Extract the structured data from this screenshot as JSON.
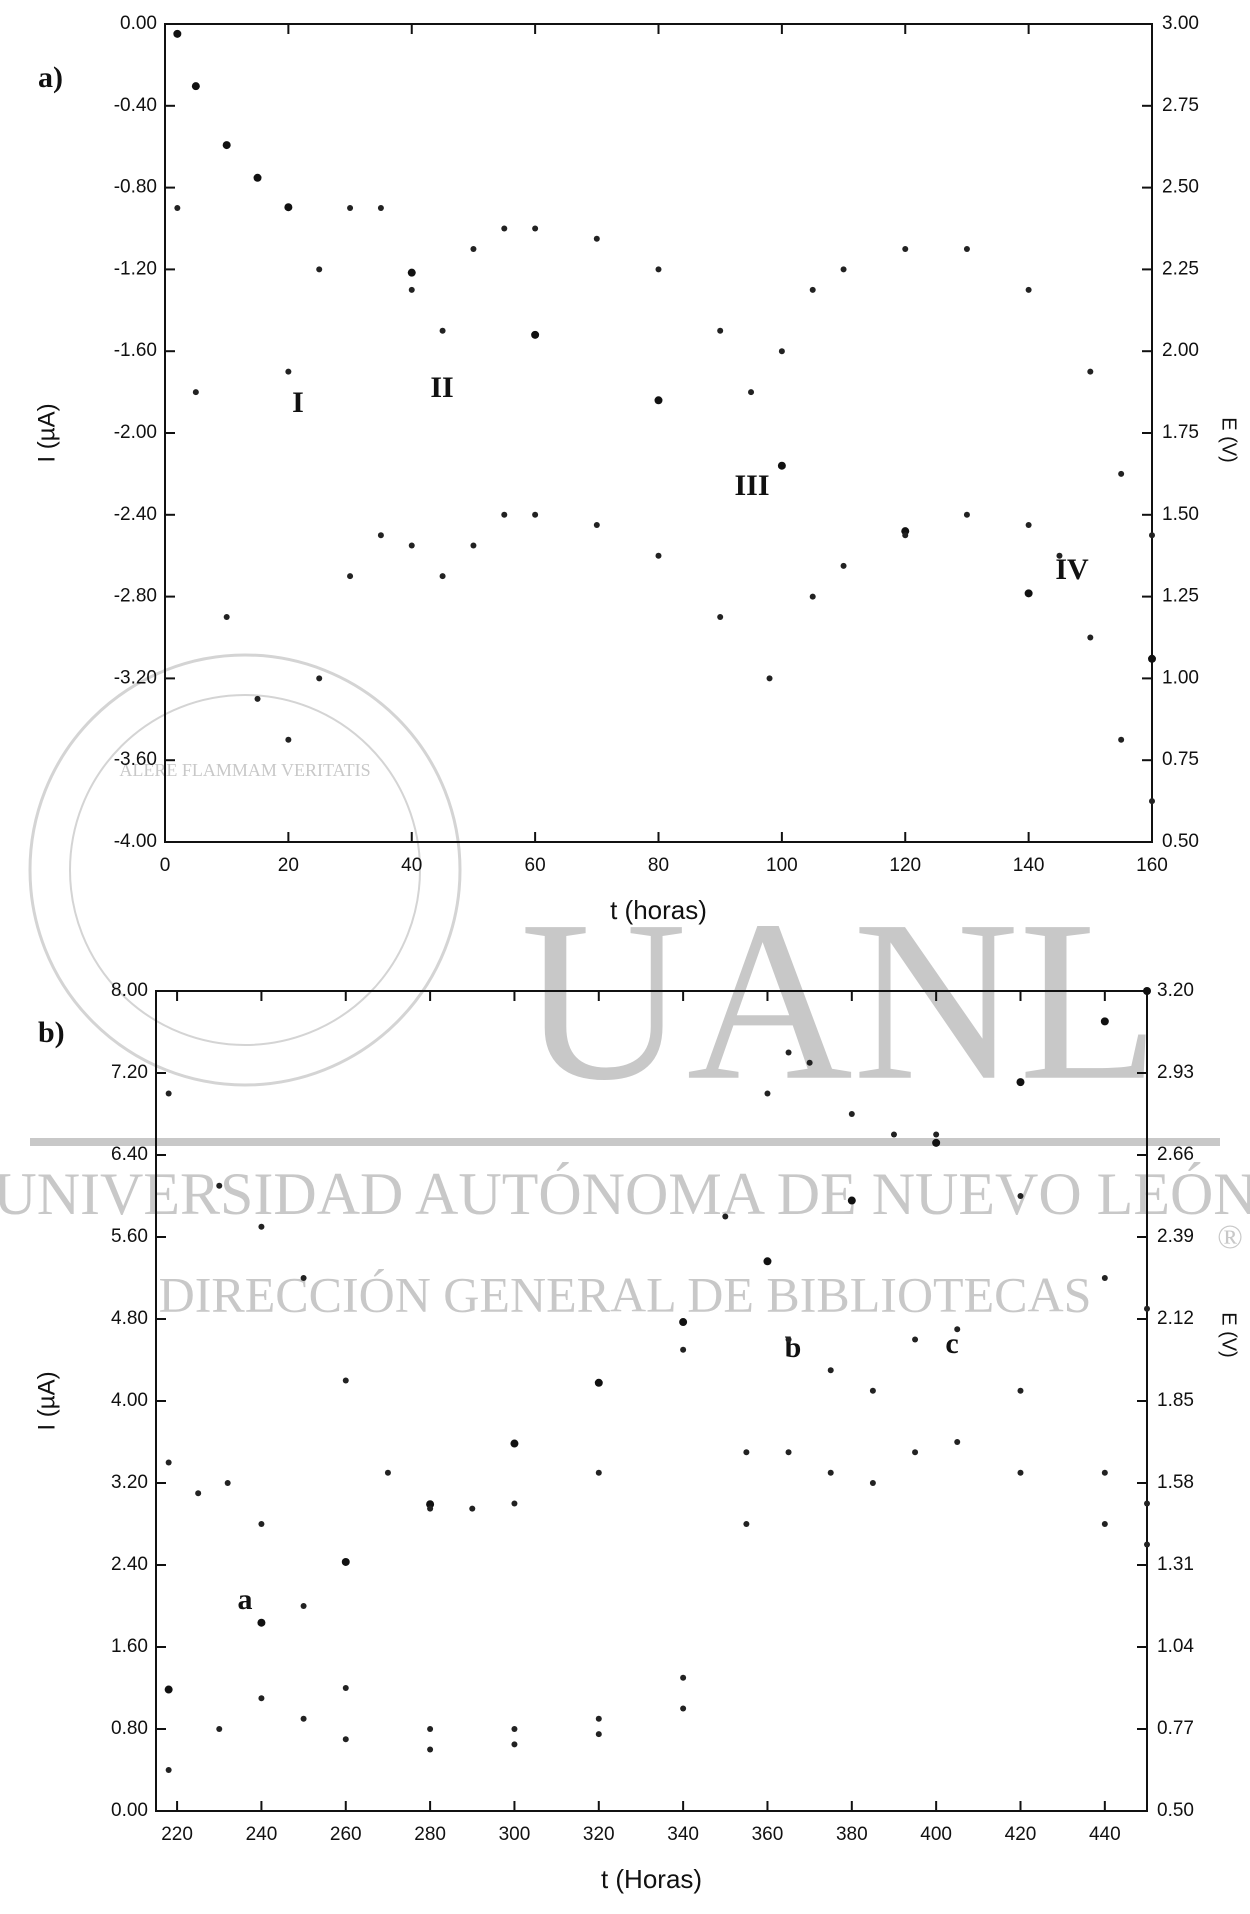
{
  "watermark": {
    "university": "UNIVERSIDAD AUTÓNOMA DE NUEVO LEÓN",
    "library": "DIRECCIÓN GENERAL DE BIBLIOTECAS",
    "logo": "UANL",
    "motto": "ALERE FLAMMAM VERITATIS",
    "mark": "®"
  },
  "chart_data": [
    {
      "type": "scatter",
      "panel_label": "a)",
      "x_label": "t (horas)",
      "y_label": "I (µA)",
      "y2_label": "E (V)",
      "annotations": [
        "I",
        "II",
        "III",
        "IV"
      ],
      "xlim": [
        0,
        160
      ],
      "xticks": [
        0,
        20,
        40,
        60,
        80,
        100,
        120,
        140,
        160
      ],
      "ylim": [
        -4,
        0
      ],
      "yticks": [
        {
          "value": -4,
          "label": "-4.00"
        },
        {
          "value": -3.6,
          "label": "-3.60"
        },
        {
          "value": -3.2,
          "label": "-3.20"
        },
        {
          "value": -2.8,
          "label": "-2.80"
        },
        {
          "value": -2.4,
          "label": "-2.40"
        },
        {
          "value": -2,
          "label": "-2.00"
        },
        {
          "value": -1.6,
          "label": "-1.60"
        },
        {
          "value": -1.2,
          "label": "-1.20"
        },
        {
          "value": -0.8,
          "label": "-0.80"
        },
        {
          "value": -0.4,
          "label": "-0.40"
        },
        {
          "value": 0,
          "label": "0.00"
        }
      ],
      "y2lim": [
        0.5,
        3
      ],
      "y2ticks": [
        {
          "value": 0.5,
          "label": "0.50"
        },
        {
          "value": 0.75,
          "label": "0.75"
        },
        {
          "value": 1,
          "label": "1.00"
        },
        {
          "value": 1.25,
          "label": "1.25"
        },
        {
          "value": 1.5,
          "label": "1.50"
        },
        {
          "value": 1.75,
          "label": "1.75"
        },
        {
          "value": 2,
          "label": "2.00"
        },
        {
          "value": 2.25,
          "label": "2.25"
        },
        {
          "value": 2.5,
          "label": "2.50"
        },
        {
          "value": 2.75,
          "label": "2.75"
        },
        {
          "value": 3,
          "label": "3.00"
        }
      ],
      "series": [
        {
          "color": "#111111",
          "axis": "y2",
          "x": [
            2,
            5,
            10,
            15,
            20,
            40,
            60,
            80,
            100,
            120,
            140,
            160
          ],
          "values": [
            2.97,
            2.81,
            2.63,
            2.53,
            2.44,
            2.24,
            2.05,
            1.85,
            1.65,
            1.45,
            1.26,
            1.06
          ]
        },
        {
          "color": "#222222",
          "x": [
            20,
            25,
            30,
            35,
            40,
            45,
            50,
            55,
            60,
            70,
            80,
            90,
            95,
            100,
            105,
            110,
            120,
            130,
            140,
            150,
            155,
            160
          ],
          "values": [
            -1.7,
            -1.2,
            -0.9,
            -0.9,
            -1.3,
            -1.5,
            -1.1,
            -1.0,
            -1.0,
            -1.05,
            -1.2,
            -1.5,
            -1.8,
            -1.6,
            -1.3,
            -1.2,
            -1.1,
            -1.1,
            -1.3,
            -1.7,
            -2.2,
            -2.5
          ]
        },
        {
          "color": "#222222",
          "x": [
            2,
            5,
            10,
            15,
            20,
            25,
            30,
            35,
            40,
            45,
            50,
            55,
            60,
            70,
            80,
            90,
            98,
            105,
            110,
            120,
            130,
            140,
            145,
            150,
            155,
            160
          ],
          "values": [
            -0.9,
            -1.8,
            -2.9,
            -3.3,
            -3.5,
            -3.2,
            -2.7,
            -2.5,
            -2.55,
            -2.7,
            -2.55,
            -2.4,
            -2.4,
            -2.45,
            -2.6,
            -2.9,
            -3.2,
            -2.8,
            -2.65,
            -2.5,
            -2.4,
            -2.45,
            -2.6,
            -3.0,
            -3.5,
            -3.8
          ]
        }
      ]
    },
    {
      "type": "scatter",
      "panel_label": "b)",
      "x_label": "t (Horas)",
      "y_label": "I (µA)",
      "y2_label": "E (V)",
      "annotations": [
        "a",
        "b",
        "c"
      ],
      "xlim": [
        215,
        450
      ],
      "xticks": [
        220,
        240,
        260,
        280,
        300,
        320,
        340,
        360,
        380,
        400,
        420,
        440
      ],
      "ylim": [
        0,
        8
      ],
      "yticks": [
        {
          "value": 0,
          "label": "0.00"
        },
        {
          "value": 0.8,
          "label": "0.80"
        },
        {
          "value": 1.6,
          "label": "1.60"
        },
        {
          "value": 2.4,
          "label": "2.40"
        },
        {
          "value": 3.2,
          "label": "3.20"
        },
        {
          "value": 4,
          "label": "4.00"
        },
        {
          "value": 4.8,
          "label": "4.80"
        },
        {
          "value": 5.6,
          "label": "5.60"
        },
        {
          "value": 6.4,
          "label": "6.40"
        },
        {
          "value": 7.2,
          "label": "7.20"
        },
        {
          "value": 8,
          "label": "8.00"
        }
      ],
      "y2lim": [
        0.5,
        3.2
      ],
      "y2ticks": [
        {
          "value": 0.5,
          "label": "0.50"
        },
        0.77,
        1.04,
        1.31,
        1.58,
        1.85,
        2.12,
        2.39,
        2.66,
        2.93,
        {
          "value": 3.2,
          "label": "3.20"
        }
      ],
      "series": [
        {
          "color": "#111111",
          "axis": "y2",
          "x": [
            218,
            240,
            260,
            280,
            300,
            320,
            340,
            360,
            380,
            400,
            420,
            440,
            450
          ],
          "values": [
            0.9,
            1.12,
            1.32,
            1.51,
            1.71,
            1.91,
            2.11,
            2.31,
            2.51,
            2.7,
            2.9,
            3.1,
            3.2
          ]
        },
        {
          "color": "#222222",
          "x": [
            218,
            230,
            240,
            250,
            260,
            270,
            280,
            290,
            300,
            320,
            340,
            350,
            360,
            365,
            370,
            380,
            390,
            400,
            420,
            440,
            450
          ],
          "values": [
            7.0,
            6.1,
            5.7,
            5.2,
            4.2,
            3.3,
            2.95,
            2.95,
            3.0,
            3.3,
            4.5,
            5.8,
            7.0,
            7.4,
            7.3,
            6.8,
            6.6,
            6.6,
            6.0,
            5.2,
            4.9
          ]
        },
        {
          "color": "#222222",
          "x": [
            218,
            225,
            232,
            240,
            250,
            260,
            280,
            300,
            320,
            340,
            355,
            365,
            375,
            385,
            395,
            405,
            420,
            440,
            450
          ],
          "values": [
            3.4,
            3.1,
            3.2,
            2.8,
            2.0,
            1.2,
            0.8,
            0.8,
            0.9,
            1.3,
            3.5,
            4.6,
            4.3,
            4.1,
            4.6,
            4.7,
            4.1,
            3.3,
            3.0
          ]
        },
        {
          "color": "#222222",
          "x": [
            218,
            230,
            240,
            250,
            260,
            280,
            300,
            320,
            340,
            355,
            365,
            375,
            385,
            395,
            405,
            420,
            440,
            450
          ],
          "values": [
            0.4,
            0.8,
            1.1,
            0.9,
            0.7,
            0.6,
            0.65,
            0.75,
            1.0,
            2.8,
            3.5,
            3.3,
            3.2,
            3.5,
            3.6,
            3.3,
            2.8,
            2.6
          ]
        }
      ]
    }
  ]
}
